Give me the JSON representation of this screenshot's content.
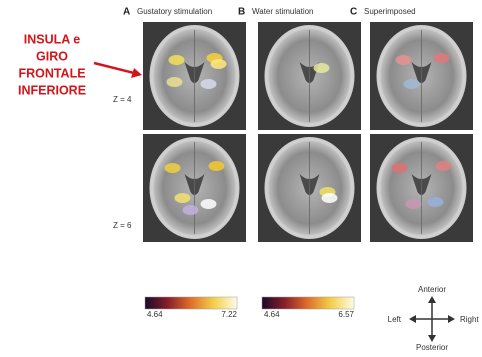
{
  "annotation": {
    "lines": [
      "INSULA e",
      "GIRO",
      "FRONTALE",
      "INFERIORE"
    ]
  },
  "panels": [
    {
      "letter": "A",
      "title": "Gustatory stimulation"
    },
    {
      "letter": "B",
      "title": "Water stimulation"
    },
    {
      "letter": "C",
      "title": "Superimposed"
    }
  ],
  "rows": [
    "Z = 4",
    "Z = 6"
  ],
  "colorbars": [
    {
      "min": "4.64",
      "max": "7.22"
    },
    {
      "min": "4.64",
      "max": "6.57"
    }
  ],
  "compass": {
    "top": "Anterior",
    "left": "Left",
    "right": "Right",
    "bottom": "Posterior"
  }
}
